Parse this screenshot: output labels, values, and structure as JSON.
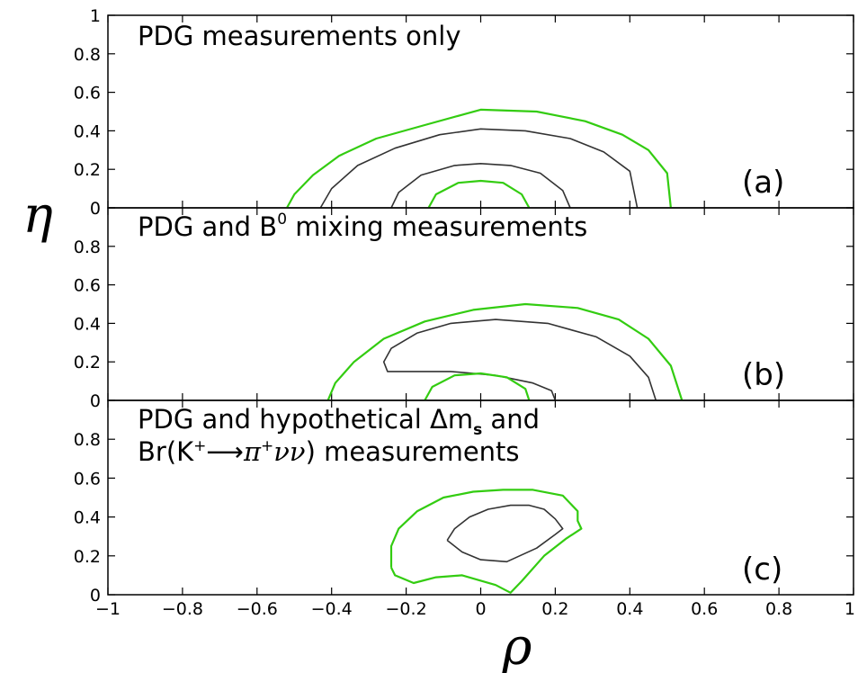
{
  "chart_data": [
    {
      "type": "line",
      "panel": "(a)",
      "title": "PDG measurements only",
      "xlabel": "ρ",
      "ylabel": "η",
      "xlim": [
        -1,
        1
      ],
      "ylim": [
        0,
        1
      ],
      "xticks": [
        "-1",
        "-0.8",
        "-0.6",
        "-0.4",
        "-0.2",
        "0",
        "0.2",
        "0.4",
        "0.6",
        "0.8",
        "1"
      ],
      "yticks": [
        "0",
        "0.2",
        "0.4",
        "0.6",
        "0.8",
        "1"
      ],
      "grid": false,
      "colors": {
        "outer": "#33cc11",
        "inner": "#333333"
      },
      "series": [
        {
          "role": "outer",
          "x": [
            -0.52,
            -0.5,
            -0.45,
            -0.38,
            -0.28,
            -0.15,
            0.0,
            0.15,
            0.28,
            0.38,
            0.45,
            0.5,
            0.51
          ],
          "y": [
            0.0,
            0.07,
            0.17,
            0.27,
            0.36,
            0.43,
            0.51,
            0.5,
            0.45,
            0.38,
            0.3,
            0.18,
            0.0
          ]
        },
        {
          "role": "inner",
          "x": [
            -0.43,
            -0.4,
            -0.33,
            -0.23,
            -0.11,
            0.0,
            0.12,
            0.24,
            0.33,
            0.4,
            0.42
          ],
          "y": [
            0.0,
            0.1,
            0.22,
            0.31,
            0.38,
            0.41,
            0.4,
            0.36,
            0.29,
            0.19,
            0.0
          ]
        },
        {
          "role": "inner",
          "x": [
            -0.24,
            -0.22,
            -0.16,
            -0.07,
            0.0,
            0.08,
            0.16,
            0.22,
            0.24
          ],
          "y": [
            0.0,
            0.08,
            0.17,
            0.22,
            0.23,
            0.22,
            0.18,
            0.09,
            0.0
          ]
        },
        {
          "role": "outer",
          "x": [
            -0.14,
            -0.12,
            -0.06,
            0.0,
            0.06,
            0.11,
            0.13
          ],
          "y": [
            0.0,
            0.07,
            0.13,
            0.14,
            0.13,
            0.07,
            0.0
          ]
        }
      ]
    },
    {
      "type": "line",
      "panel": "(b)",
      "title": "PDG and B⁰ mixing measurements",
      "xlim": [
        -1,
        1
      ],
      "ylim": [
        0,
        1
      ],
      "xticks": [
        "-1",
        "-0.8",
        "-0.6",
        "-0.4",
        "-0.2",
        "0",
        "0.2",
        "0.4",
        "0.6",
        "0.8",
        "1"
      ],
      "yticks": [
        "0",
        "0.2",
        "0.4",
        "0.6",
        "0.8",
        "1"
      ],
      "grid": false,
      "colors": {
        "outer": "#33cc11",
        "inner": "#333333"
      },
      "series": [
        {
          "role": "outer",
          "x": [
            -0.41,
            -0.39,
            -0.34,
            -0.26,
            -0.15,
            -0.02,
            0.12,
            0.26,
            0.37,
            0.45,
            0.51,
            0.54
          ],
          "y": [
            0.0,
            0.09,
            0.2,
            0.32,
            0.41,
            0.47,
            0.5,
            0.48,
            0.42,
            0.32,
            0.18,
            0.0
          ]
        },
        {
          "role": "inner",
          "x": [
            0.47,
            0.45,
            0.4,
            0.31,
            0.18,
            0.04,
            -0.08,
            -0.17,
            -0.24,
            -0.26,
            -0.25,
            -0.18,
            -0.08,
            0.04,
            0.14,
            0.19,
            0.2
          ],
          "y": [
            0.0,
            0.12,
            0.23,
            0.33,
            0.4,
            0.42,
            0.4,
            0.35,
            0.27,
            0.2,
            0.15,
            0.15,
            0.15,
            0.13,
            0.09,
            0.05,
            0.0
          ]
        },
        {
          "role": "outer",
          "x": [
            -0.15,
            -0.13,
            -0.07,
            0.0,
            0.07,
            0.12,
            0.13
          ],
          "y": [
            0.0,
            0.07,
            0.13,
            0.14,
            0.12,
            0.06,
            0.0
          ]
        }
      ]
    },
    {
      "type": "line",
      "panel": "(c)",
      "title_lines": [
        "PDG and hypothetical Δmₛ and",
        "Br(K⁺⟶π⁺νν) measurements"
      ],
      "xlim": [
        -1,
        1
      ],
      "ylim": [
        0,
        1
      ],
      "xticks": [
        "-1",
        "-0.8",
        "-0.6",
        "-0.4",
        "-0.2",
        "0",
        "0.2",
        "0.4",
        "0.6",
        "0.8",
        "1"
      ],
      "yticks": [
        "0",
        "0.2",
        "0.4",
        "0.6",
        "0.8",
        "1"
      ],
      "grid": false,
      "colors": {
        "outer": "#33cc11",
        "inner": "#333333"
      },
      "series": [
        {
          "role": "outer",
          "x": [
            -0.24,
            -0.24,
            -0.22,
            -0.17,
            -0.1,
            -0.02,
            0.06,
            0.14,
            0.22,
            0.26,
            0.26,
            0.27,
            0.23,
            0.17,
            0.11,
            0.08,
            0.04,
            -0.05,
            -0.12,
            -0.18,
            -0.23,
            -0.24
          ],
          "y": [
            0.14,
            0.25,
            0.34,
            0.43,
            0.5,
            0.53,
            0.54,
            0.54,
            0.51,
            0.43,
            0.38,
            0.34,
            0.29,
            0.2,
            0.07,
            0.01,
            0.05,
            0.1,
            0.09,
            0.06,
            0.1,
            0.14
          ]
        },
        {
          "role": "inner",
          "x": [
            -0.09,
            -0.07,
            -0.03,
            0.02,
            0.08,
            0.13,
            0.17,
            0.2,
            0.22,
            0.2,
            0.15,
            0.07,
            0.0,
            -0.05,
            -0.09
          ],
          "y": [
            0.28,
            0.34,
            0.4,
            0.44,
            0.46,
            0.46,
            0.44,
            0.39,
            0.34,
            0.31,
            0.24,
            0.17,
            0.18,
            0.22,
            0.28
          ]
        }
      ]
    }
  ],
  "labels": {
    "xlabel": "ρ",
    "ylabel": "η",
    "panel_a_title": "PDG measurements only",
    "panel_a_letter": "(a)",
    "panel_b_title": "PDG and B",
    "panel_b_sup": "0",
    "panel_b_title_rest": " mixing measurements",
    "panel_b_letter": "(b)",
    "panel_c_title_1a": "PDG and hypothetical Δm",
    "panel_c_title_1sub": "s",
    "panel_c_title_1b": " and",
    "panel_c_title_2a": "Br(K",
    "panel_c_title_2sup1": "+",
    "panel_c_title_2arrow": "⟶",
    "panel_c_title_2b": "π",
    "panel_c_title_2sup2": "+",
    "panel_c_title_2c": "νν",
    "panel_c_title_2d": ") measurements",
    "panel_c_letter": "(c)"
  }
}
